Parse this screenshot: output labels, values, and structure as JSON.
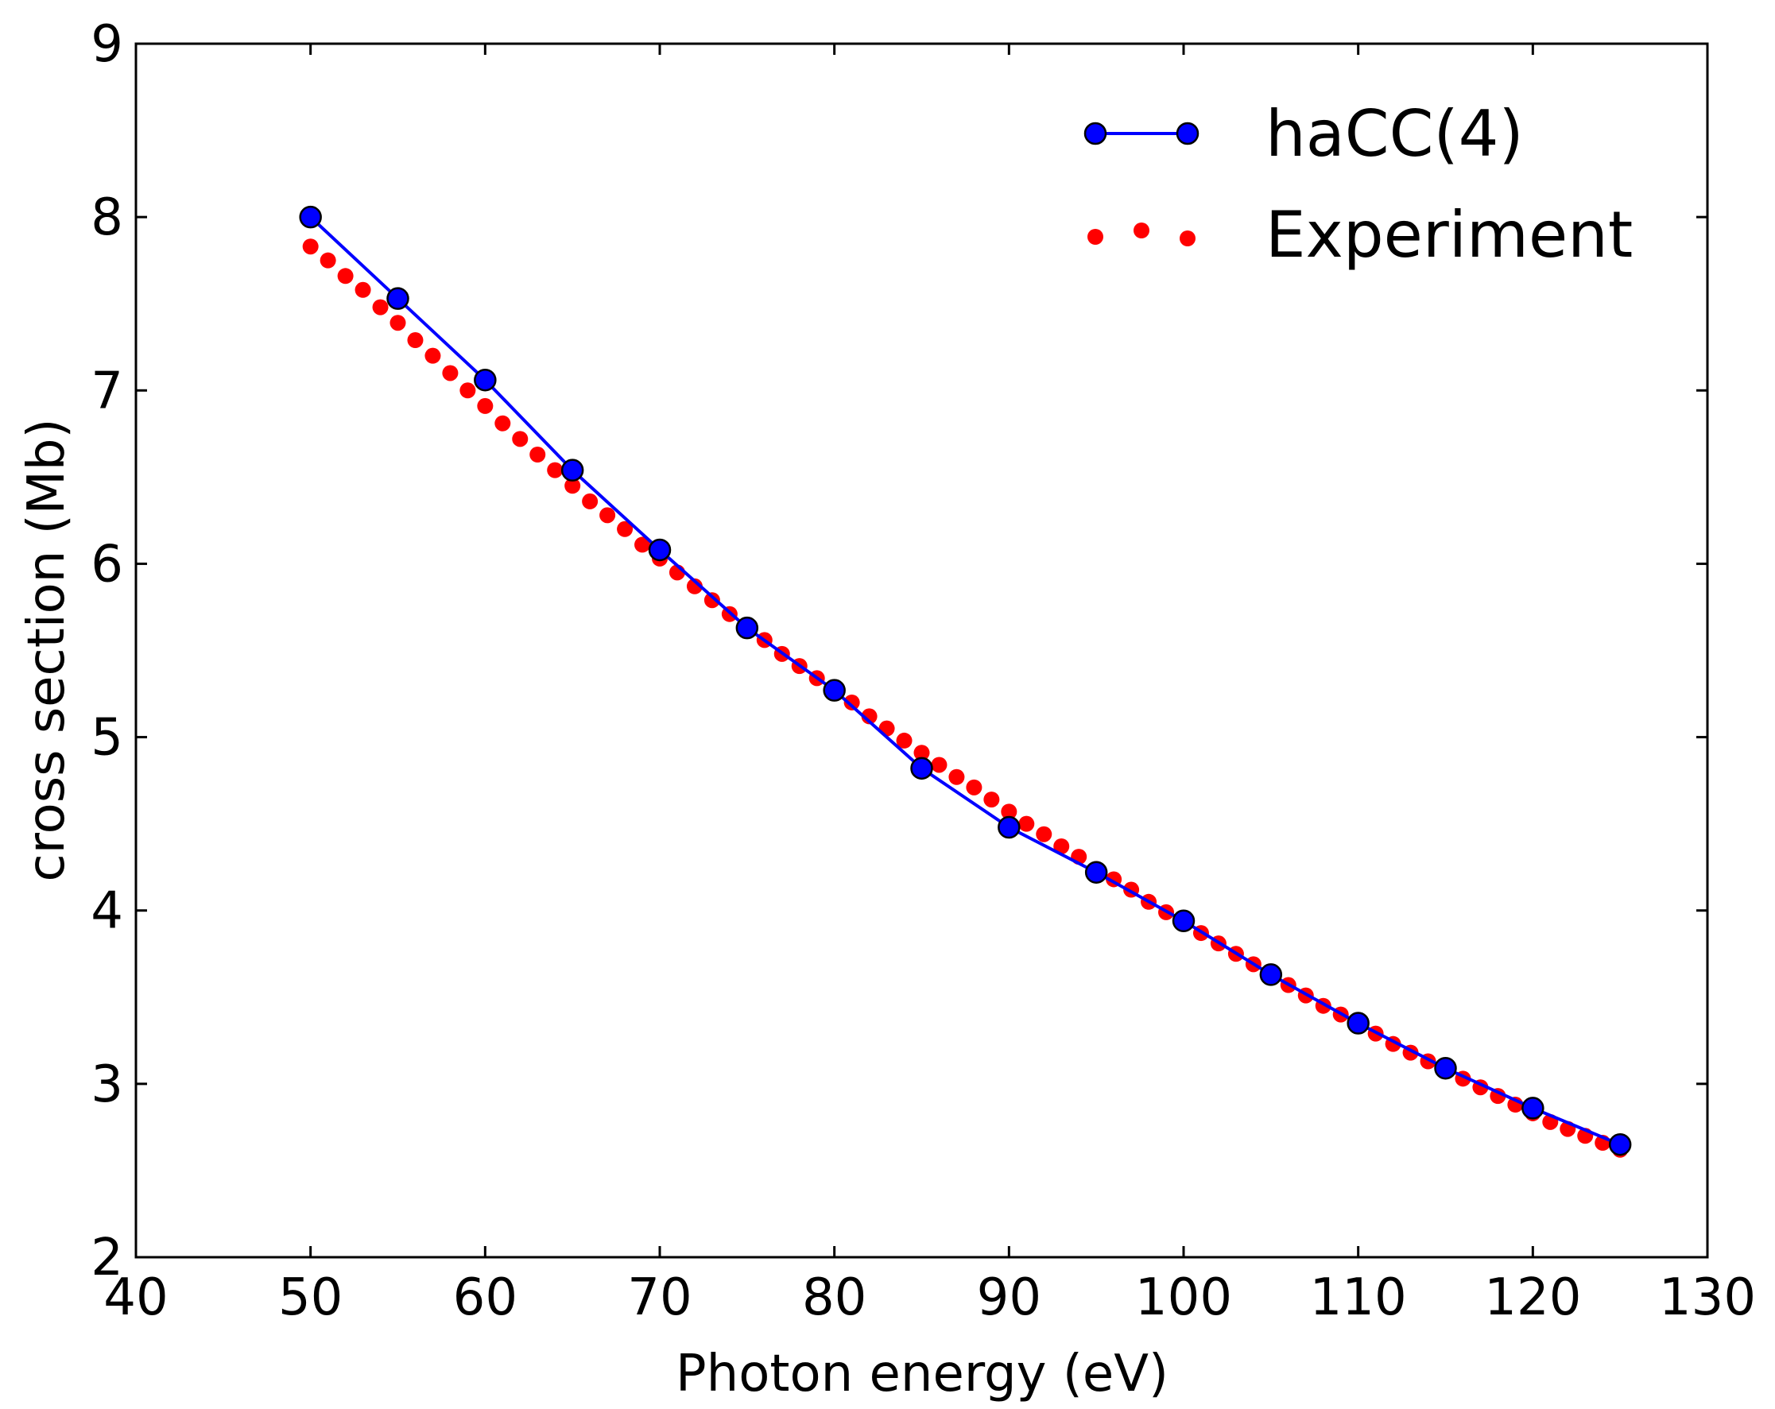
{
  "chart_data": {
    "type": "line",
    "title": "",
    "xlabel": "Photon energy (eV)",
    "ylabel": "cross section (Mb)",
    "xlim": [
      40,
      130
    ],
    "ylim": [
      2,
      9
    ],
    "xticks": [
      40,
      50,
      60,
      70,
      80,
      90,
      100,
      110,
      120,
      130
    ],
    "yticks": [
      2,
      3,
      4,
      5,
      6,
      7,
      8,
      9
    ],
    "grid": false,
    "legend_position": "top-right",
    "series": [
      {
        "name": "haCC(4)",
        "style": "line-with-markers",
        "color": "#0000ff",
        "marker_color": "#0000ff",
        "x": [
          50,
          55,
          60,
          65,
          70,
          75,
          80,
          85,
          90,
          95,
          100,
          105,
          110,
          115,
          120,
          125
        ],
        "y": [
          8.0,
          7.53,
          7.06,
          6.54,
          6.08,
          5.63,
          5.27,
          4.82,
          4.48,
          4.22,
          3.94,
          3.63,
          3.35,
          3.09,
          2.86,
          2.65
        ]
      },
      {
        "name": "Experiment",
        "style": "dots",
        "color": "#ff0000",
        "x": [
          50,
          51,
          52,
          53,
          54,
          55,
          56,
          57,
          58,
          59,
          60,
          61,
          62,
          63,
          64,
          65,
          66,
          67,
          68,
          69,
          70,
          71,
          72,
          73,
          74,
          75,
          76,
          77,
          78,
          79,
          80,
          81,
          82,
          83,
          84,
          85,
          86,
          87,
          88,
          89,
          90,
          91,
          92,
          93,
          94,
          95,
          96,
          97,
          98,
          99,
          100,
          101,
          102,
          103,
          104,
          105,
          106,
          107,
          108,
          109,
          110,
          111,
          112,
          113,
          114,
          115,
          116,
          117,
          118,
          119,
          120,
          121,
          122,
          123,
          124,
          125
        ],
        "y": [
          7.83,
          7.75,
          7.66,
          7.58,
          7.48,
          7.39,
          7.29,
          7.2,
          7.1,
          7.0,
          6.91,
          6.81,
          6.72,
          6.63,
          6.54,
          6.45,
          6.36,
          6.28,
          6.2,
          6.11,
          6.03,
          5.95,
          5.87,
          5.79,
          5.71,
          5.63,
          5.56,
          5.48,
          5.41,
          5.34,
          5.27,
          5.2,
          5.12,
          5.05,
          4.98,
          4.91,
          4.84,
          4.77,
          4.71,
          4.64,
          4.57,
          4.5,
          4.44,
          4.37,
          4.31,
          4.24,
          4.18,
          4.12,
          4.05,
          3.99,
          3.93,
          3.87,
          3.81,
          3.75,
          3.69,
          3.63,
          3.57,
          3.51,
          3.45,
          3.4,
          3.34,
          3.29,
          3.23,
          3.18,
          3.13,
          3.08,
          3.03,
          2.98,
          2.93,
          2.88,
          2.83,
          2.78,
          2.74,
          2.7,
          2.66,
          2.62
        ]
      }
    ]
  }
}
